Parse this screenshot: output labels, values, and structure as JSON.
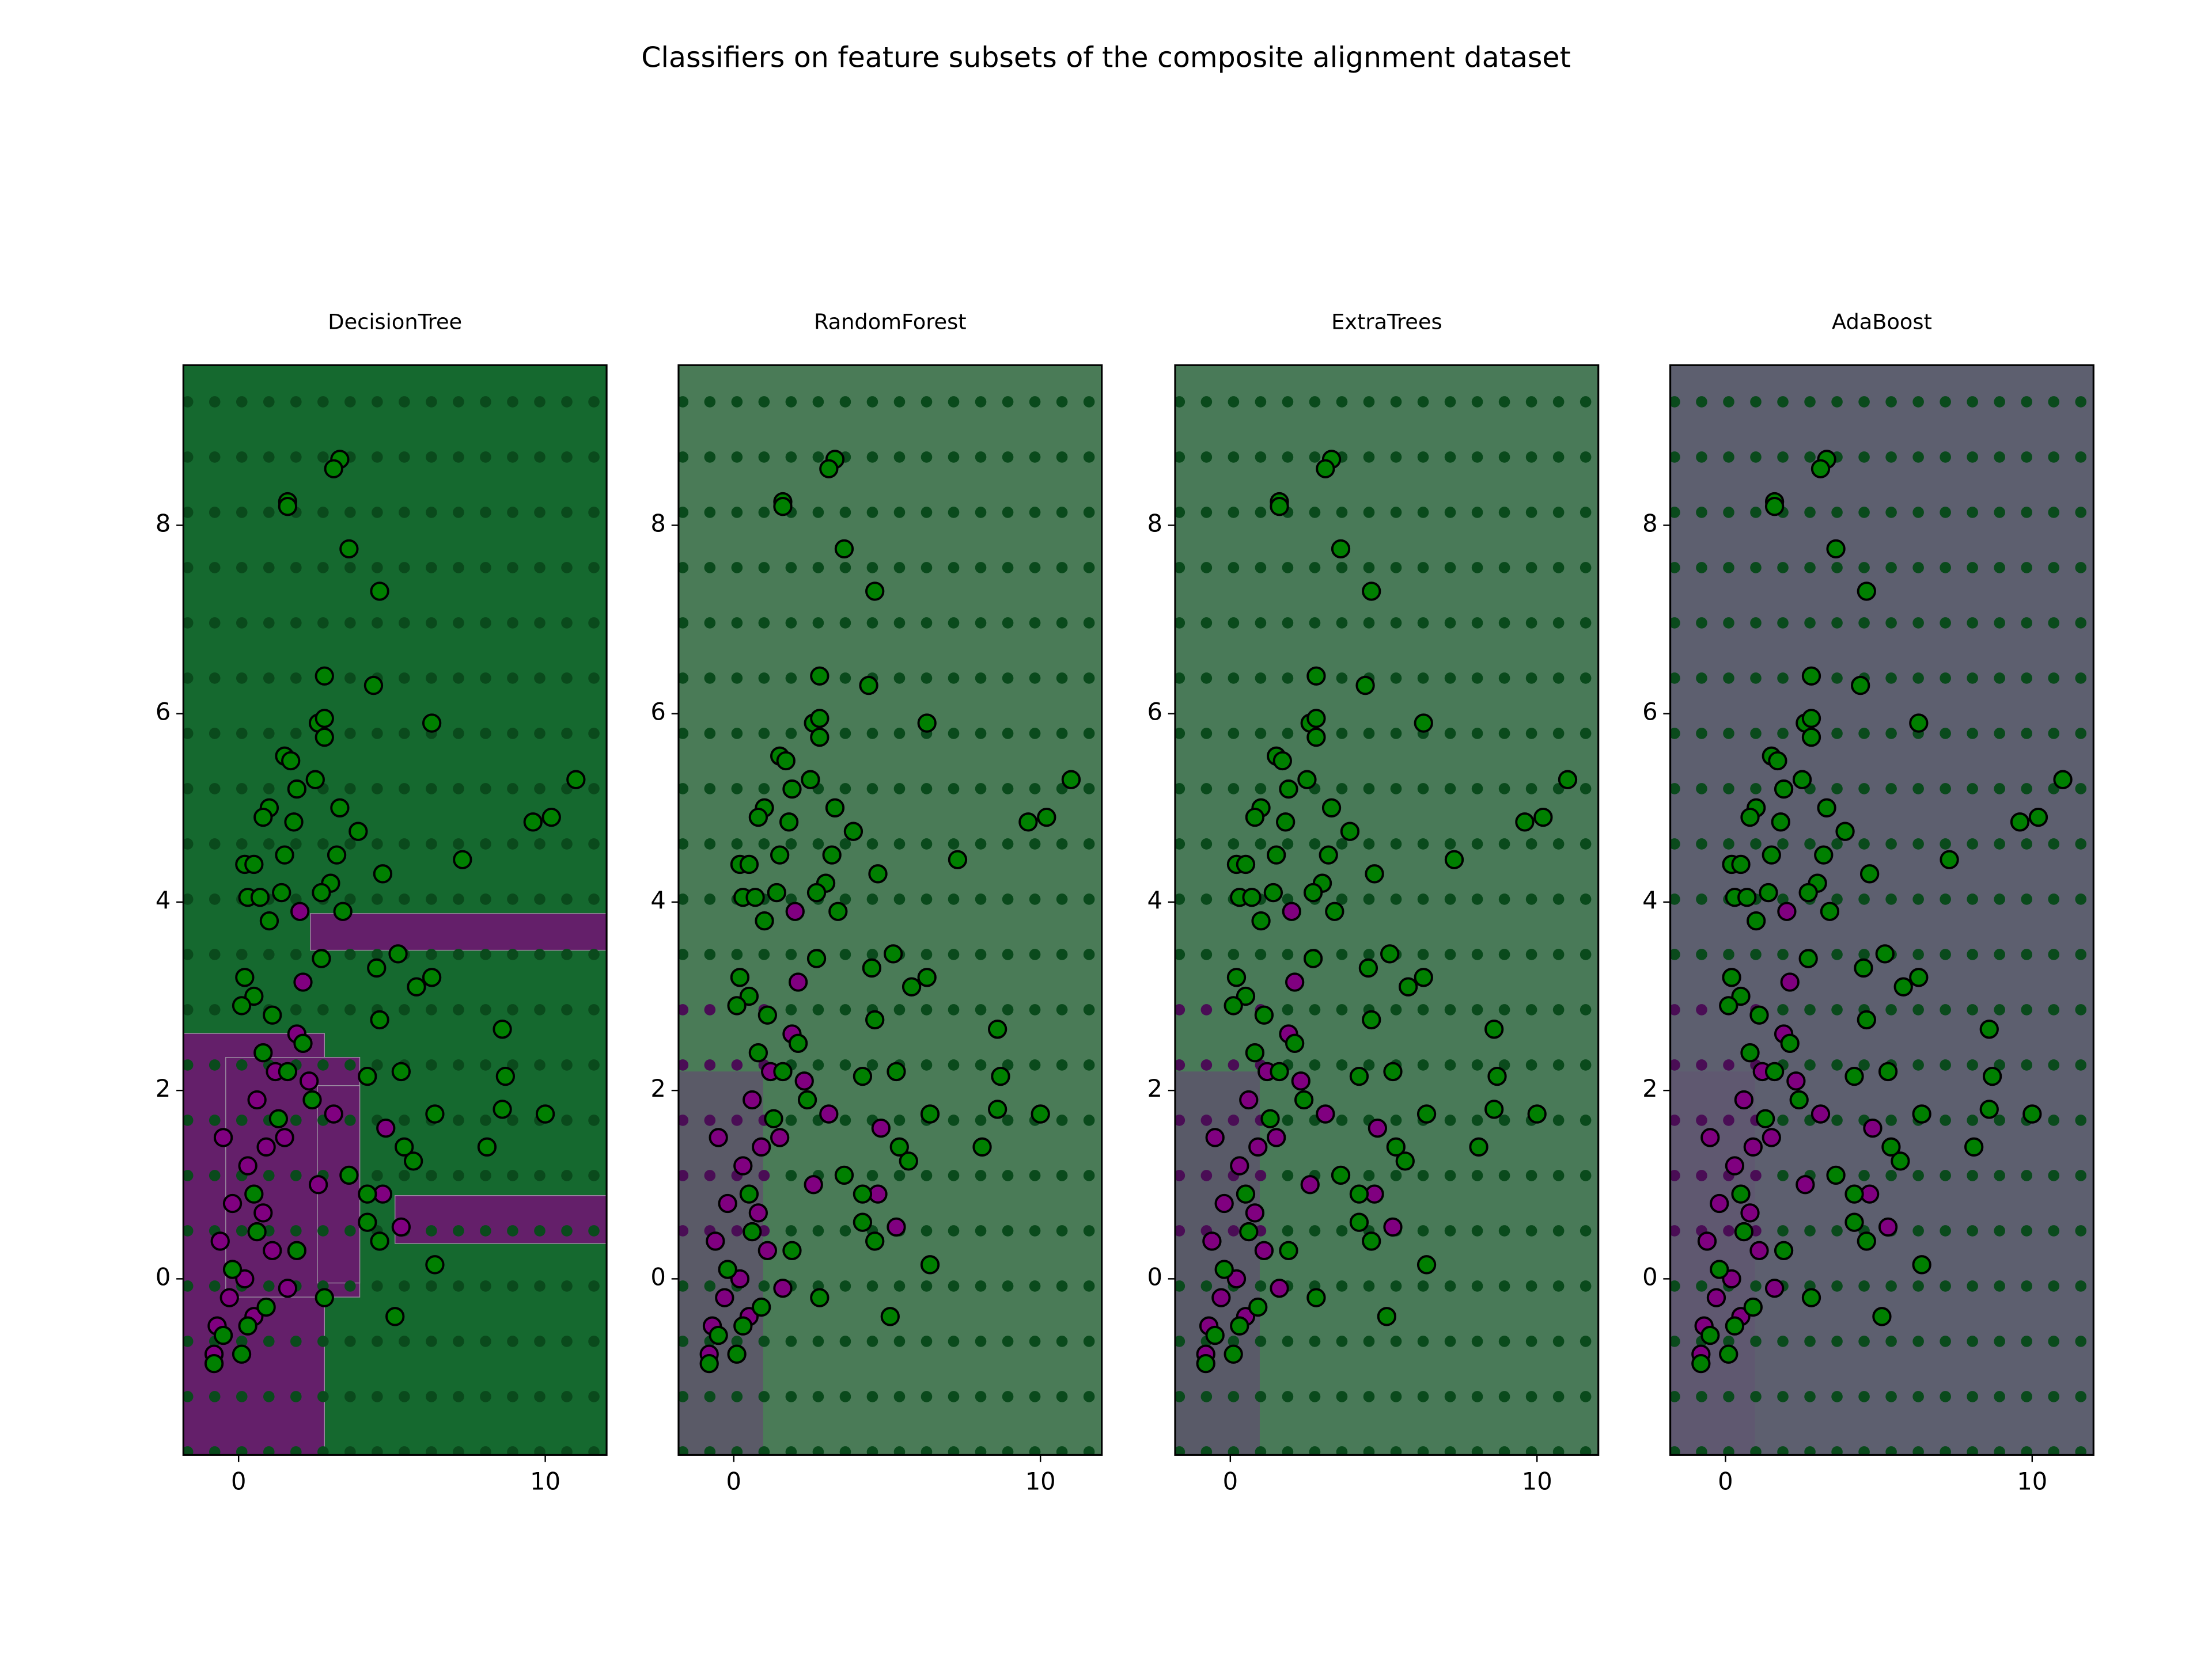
{
  "chart_data": {
    "type": "scatter",
    "title": "Classifiers on feature subsets of the composite alignment dataset",
    "panels": [
      "DecisionTree",
      "RandomForest",
      "ExtraTrees",
      "AdaBoost"
    ],
    "xlim": [
      -1.8,
      12
    ],
    "ylim": [
      -1.87,
      9.7
    ],
    "xticks": [
      0,
      10
    ],
    "yticks": [
      0,
      2,
      4,
      6,
      8
    ],
    "series": [
      {
        "color": "#800080",
        "x": [
          2,
          2.1,
          1.9,
          1.2,
          0.6,
          -0.5,
          1.5,
          0.3,
          -0.2,
          2.6,
          0.8,
          -0.6,
          1.1,
          0.2,
          -0.3,
          -0.7,
          0.5,
          -0.8,
          5.3,
          4.7,
          4.8,
          1.6,
          3.1,
          2.3,
          0.9
        ],
        "values": [
          3.9,
          3.15,
          2.6,
          2.2,
          1.9,
          1.5,
          1.5,
          1.2,
          0.8,
          1,
          0.7,
          0.4,
          0.3,
          0,
          -0.2,
          -0.5,
          -0.4,
          -0.8,
          0.55,
          0.9,
          1.6,
          -0.1,
          1.75,
          2.1,
          1.4
        ]
      },
      {
        "color": "#008000",
        "x": [
          3.3,
          3.1,
          1.6,
          1.6,
          3.6,
          4.6,
          4.4,
          2.8,
          6.3,
          2.6,
          2.8,
          2.8,
          1.5,
          1.7,
          11,
          2.5,
          1.9,
          9.6,
          10.2,
          3.3,
          1,
          0.8,
          1.8,
          3.9,
          1.5,
          3.2,
          7.3,
          0.2,
          0.5,
          4.7,
          3,
          2.7,
          1.4,
          0.3,
          0.7,
          3.4,
          1,
          2.7,
          4.5,
          5.2,
          6.3,
          5.8,
          0.2,
          0.5,
          0.1,
          1.1,
          4.6,
          8.6,
          2.1,
          0.8,
          1.6,
          4.2,
          5.3,
          8.7,
          2.4,
          6.4,
          8.6,
          10,
          1.3,
          5.4,
          8.1,
          5.7,
          3.6,
          4.2,
          0.5,
          4.2,
          4.6,
          1.9,
          6.4,
          2.8,
          5.1,
          0.9,
          0.3,
          0.1,
          -0.8,
          -0.5,
          -0.2,
          0.6
        ],
        "values": [
          8.7,
          8.6,
          8.25,
          8.2,
          7.75,
          7.3,
          6.3,
          6.4,
          5.9,
          5.9,
          5.95,
          5.75,
          5.55,
          5.5,
          5.3,
          5.3,
          5.2,
          4.85,
          4.9,
          5,
          5,
          4.9,
          4.85,
          4.75,
          4.5,
          4.5,
          4.45,
          4.4,
          4.4,
          4.3,
          4.2,
          4.1,
          4.1,
          4.05,
          4.05,
          3.9,
          3.8,
          3.4,
          3.3,
          3.45,
          3.2,
          3.1,
          3.2,
          3,
          2.9,
          2.8,
          2.75,
          2.65,
          2.5,
          2.4,
          2.2,
          2.15,
          2.2,
          2.15,
          1.9,
          1.75,
          1.8,
          1.75,
          1.7,
          1.4,
          1.4,
          1.25,
          1.1,
          0.9,
          0.9,
          0.6,
          0.4,
          0.3,
          0.15,
          -0.2,
          -0.4,
          -0.3,
          -0.5,
          -0.8,
          -0.9,
          -0.6,
          0.1,
          0.5
        ]
      }
    ]
  }
}
